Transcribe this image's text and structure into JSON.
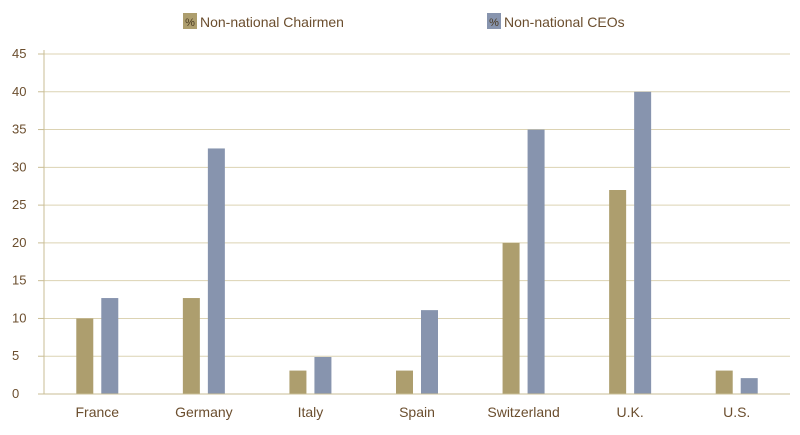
{
  "legend": {
    "glyph": "%",
    "items": [
      {
        "label": "Non-national Chairmen"
      },
      {
        "label": "Non-national CEOs"
      }
    ]
  },
  "chart_data": {
    "type": "bar",
    "categories": [
      "France",
      "Germany",
      "Italy",
      "Spain",
      "Switzerland",
      "U.K.",
      "U.S."
    ],
    "series": [
      {
        "name": "Non-national Chairmen",
        "color": "#ad9e6e",
        "values": [
          10,
          12.7,
          3.1,
          3.1,
          20,
          27,
          3.1
        ]
      },
      {
        "name": "Non-national CEOs",
        "color": "#8794ae",
        "values": [
          12.7,
          32.5,
          4.9,
          11.1,
          35,
          40,
          2.1
        ]
      }
    ],
    "ylim": [
      0,
      45
    ],
    "yticks": [
      "0",
      "5",
      "10",
      "15",
      "20",
      "25",
      "30",
      "35",
      "40",
      "45"
    ],
    "grid": true,
    "legend_position": "top"
  }
}
